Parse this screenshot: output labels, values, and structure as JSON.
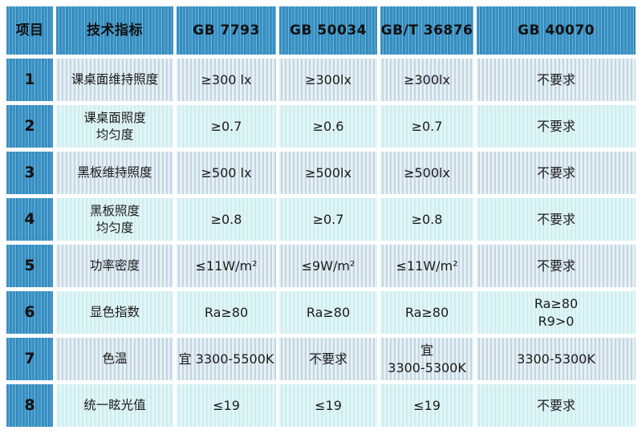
{
  "colors": {
    "header_blue": "#3c8fc4",
    "header_stripe_light": "#6cc0d8",
    "header_stripe_dark": "#2d7eb3",
    "odd_row_cyan": "#dff2f0",
    "odd_row_lavender": "#c9d1e6",
    "even_row_cyan": "#e2f7f5",
    "even_row_stripe": "#cfecf3",
    "text": "#1b1b1b",
    "background": "#ffffff"
  },
  "table": {
    "headers": [
      "项目",
      "技术指标",
      "GB 7793",
      "GB 50034",
      "GB/T 36876",
      "GB 40070"
    ],
    "rows": [
      {
        "no": "1",
        "cells": [
          "课桌面维持照度",
          "≥300 lx",
          "≥300lx",
          "≥300lx",
          "不要求"
        ]
      },
      {
        "no": "2",
        "cells": [
          "课桌面照度\n均匀度",
          "≥0.7",
          "≥0.6",
          "≥0.7",
          "不要求"
        ]
      },
      {
        "no": "3",
        "cells": [
          "黑板维持照度",
          "≥500 lx",
          "≥500lx",
          "≥500lx",
          "不要求"
        ]
      },
      {
        "no": "4",
        "cells": [
          "黑板照度\n均匀度",
          "≥0.8",
          "≥0.7",
          "≥0.8",
          "不要求"
        ]
      },
      {
        "no": "5",
        "cells": [
          "功率密度",
          "≤11W/m²",
          "≤9W/m²",
          "≤11W/m²",
          "不要求"
        ]
      },
      {
        "no": "6",
        "cells": [
          "显色指数",
          "Ra≥80",
          "Ra≥80",
          "Ra≥80",
          "Ra≥80\nR9>0"
        ]
      },
      {
        "no": "7",
        "cells": [
          "色温",
          "宜 3300-5500K",
          "不要求",
          "宜\n3300-5300K",
          "3300-5300K"
        ]
      },
      {
        "no": "8",
        "cells": [
          "统一眩光值",
          "≤19",
          "≤19",
          "≤19",
          "不要求"
        ]
      }
    ]
  },
  "chart_data": {
    "type": "table",
    "title": "",
    "columns": [
      "项目",
      "技术指标",
      "GB 7793",
      "GB 50034",
      "GB/T 36876",
      "GB 40070"
    ],
    "rows": [
      [
        "1",
        "课桌面维持照度",
        "≥300 lx",
        "≥300lx",
        "≥300lx",
        "不要求"
      ],
      [
        "2",
        "课桌面照度均匀度",
        "≥0.7",
        "≥0.6",
        "≥0.7",
        "不要求"
      ],
      [
        "3",
        "黑板维持照度",
        "≥500 lx",
        "≥500lx",
        "≥500lx",
        "不要求"
      ],
      [
        "4",
        "黑板照度均匀度",
        "≥0.8",
        "≥0.7",
        "≥0.8",
        "不要求"
      ],
      [
        "5",
        "功率密度",
        "≤11W/m²",
        "≤9W/m²",
        "≤11W/m²",
        "不要求"
      ],
      [
        "6",
        "显色指数",
        "Ra≥80",
        "Ra≥80",
        "Ra≥80",
        "Ra≥80 R9>0"
      ],
      [
        "7",
        "色温",
        "宜 3300-5500K",
        "不要求",
        "宜 3300-5300K",
        "3300-5300K"
      ],
      [
        "8",
        "统一眩光值",
        "≤19",
        "≤19",
        "≤19",
        "不要求"
      ]
    ]
  }
}
